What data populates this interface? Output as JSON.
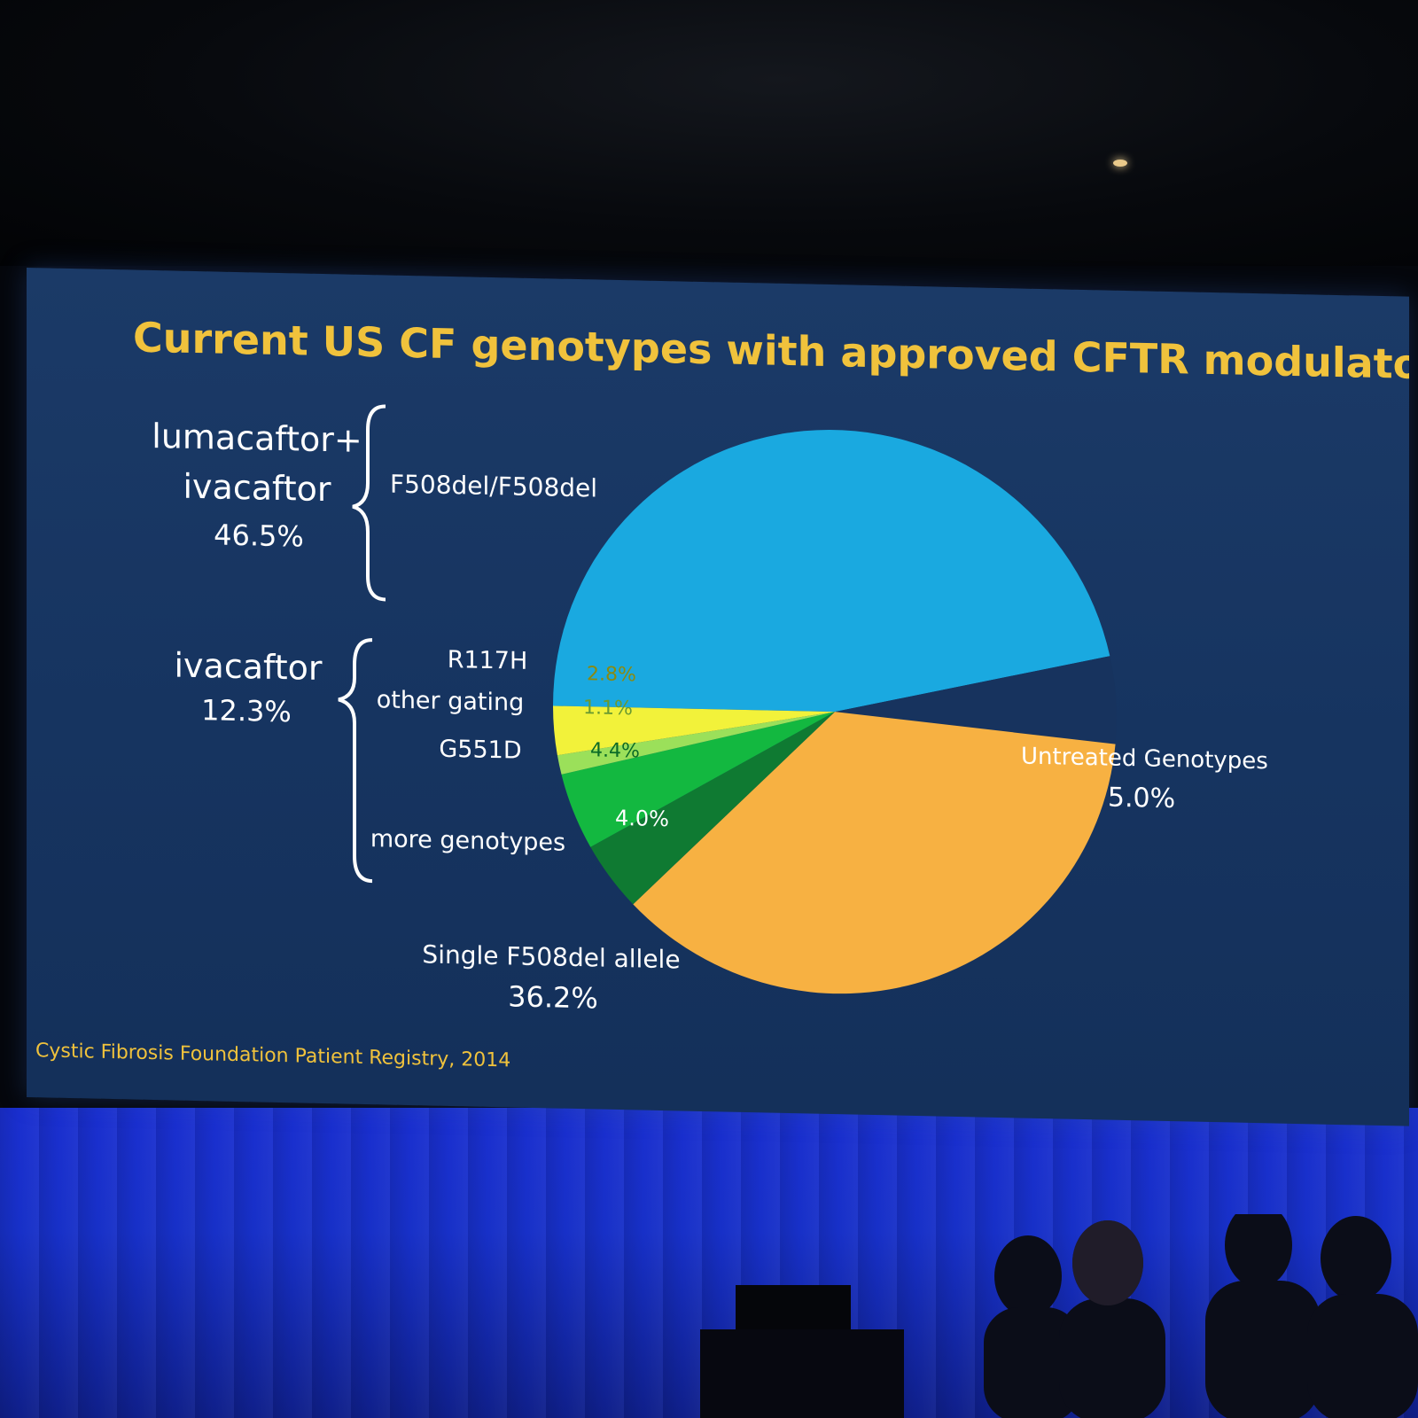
{
  "slide": {
    "title": "Current US CF genotypes with approved CFTR modulators",
    "source": "Cystic Fibrosis Foundation Patient Registry, 2014",
    "groups": [
      {
        "id": "luma",
        "label_line1": "lumacaftor+",
        "label_line2": "ivacaftor",
        "percent": "46.5%"
      },
      {
        "id": "iva",
        "label_line1": "ivacaftor",
        "percent": "12.3%"
      }
    ]
  },
  "chart_data": {
    "type": "pie",
    "title": "Current US CF genotypes with approved CFTR modulators",
    "slices": [
      {
        "label": "F508del/F508del",
        "value": 46.5,
        "value_label": "",
        "color": "#1aa9e0"
      },
      {
        "label": "Untreated Genotypes",
        "value": 5.0,
        "value_label": "5.0%",
        "color": "#17335e"
      },
      {
        "label": "Single F508del allele",
        "value": 36.2,
        "value_label": "36.2%",
        "color": "#f7b142"
      },
      {
        "label": "more genotypes",
        "value": 4.0,
        "value_label": "4.0%",
        "color": "#0f7a32"
      },
      {
        "label": "G551D",
        "value": 4.4,
        "value_label": "4.4%",
        "color": "#13b840"
      },
      {
        "label": "other gating",
        "value": 1.1,
        "value_label": "1.1%",
        "color": "#9be05a"
      },
      {
        "label": "R117H",
        "value": 2.8,
        "value_label": "2.8%",
        "color": "#f2f23a"
      }
    ],
    "legend": "none"
  }
}
